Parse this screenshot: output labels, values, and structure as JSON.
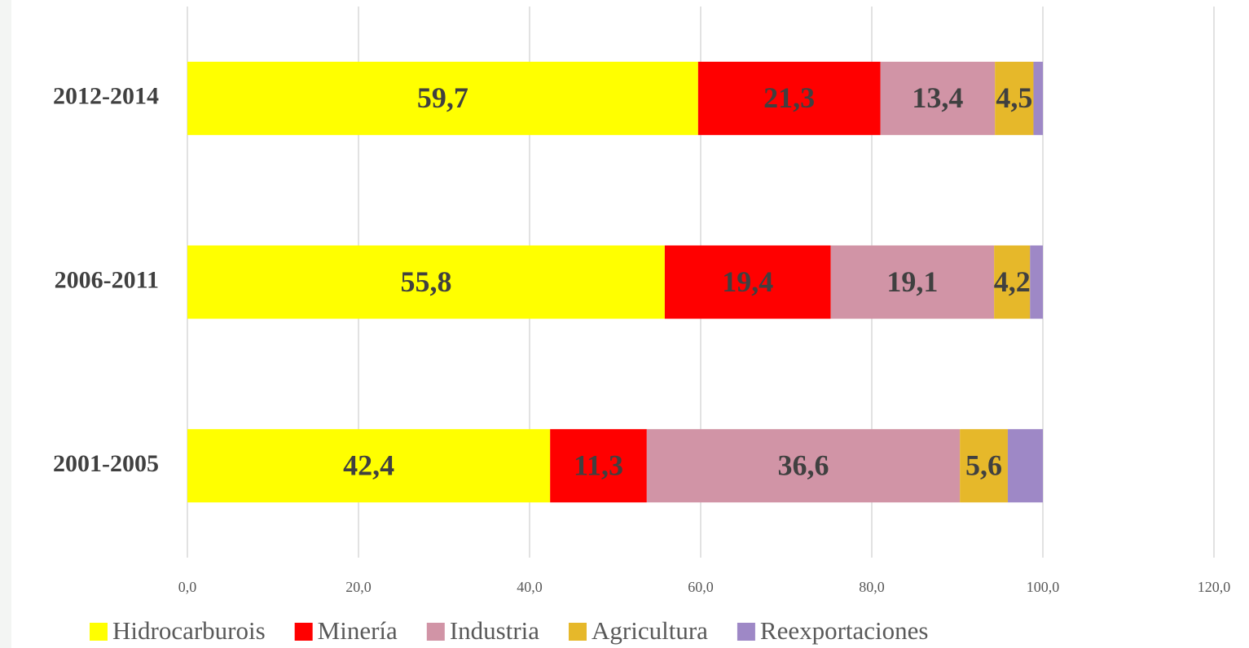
{
  "chart_data": {
    "type": "stacked_barh",
    "categories": [
      "2001-2005",
      "2006-2011",
      "2012-2014"
    ],
    "series": [
      {
        "name": "Hidrocarburois",
        "color": "#ffff00",
        "values": [
          42.4,
          55.8,
          59.7
        ],
        "value_labels": [
          "42,4",
          "55,8",
          "59,7"
        ]
      },
      {
        "name": "Minería",
        "color": "#ff0000",
        "values": [
          11.3,
          19.4,
          21.3
        ],
        "value_labels": [
          "11,3",
          "19,4",
          "21,3"
        ]
      },
      {
        "name": "Industria",
        "color": "#d194a6",
        "values": [
          36.6,
          19.1,
          13.4
        ],
        "value_labels": [
          "36,6",
          "19,1",
          "13,4"
        ]
      },
      {
        "name": "Agricultura",
        "color": "#e6b82a",
        "values": [
          5.6,
          4.2,
          4.5
        ],
        "value_labels": [
          "5,6",
          "4,2",
          "4,5"
        ]
      },
      {
        "name": "Reexportaciones",
        "color": "#9e88c6",
        "values": [
          4.1,
          1.5,
          1.1
        ]
      }
    ],
    "xlim": [
      0,
      120
    ],
    "xticks": [
      {
        "value": 0,
        "label": "0,0"
      },
      {
        "value": 20,
        "label": "20,0"
      },
      {
        "value": 40,
        "label": "40,0"
      },
      {
        "value": 60,
        "label": "60,0"
      },
      {
        "value": 80,
        "label": "80,0"
      },
      {
        "value": 100,
        "label": "100,0"
      },
      {
        "value": 120,
        "label": "120,0"
      }
    ],
    "grid": true,
    "legend": "bottom"
  }
}
